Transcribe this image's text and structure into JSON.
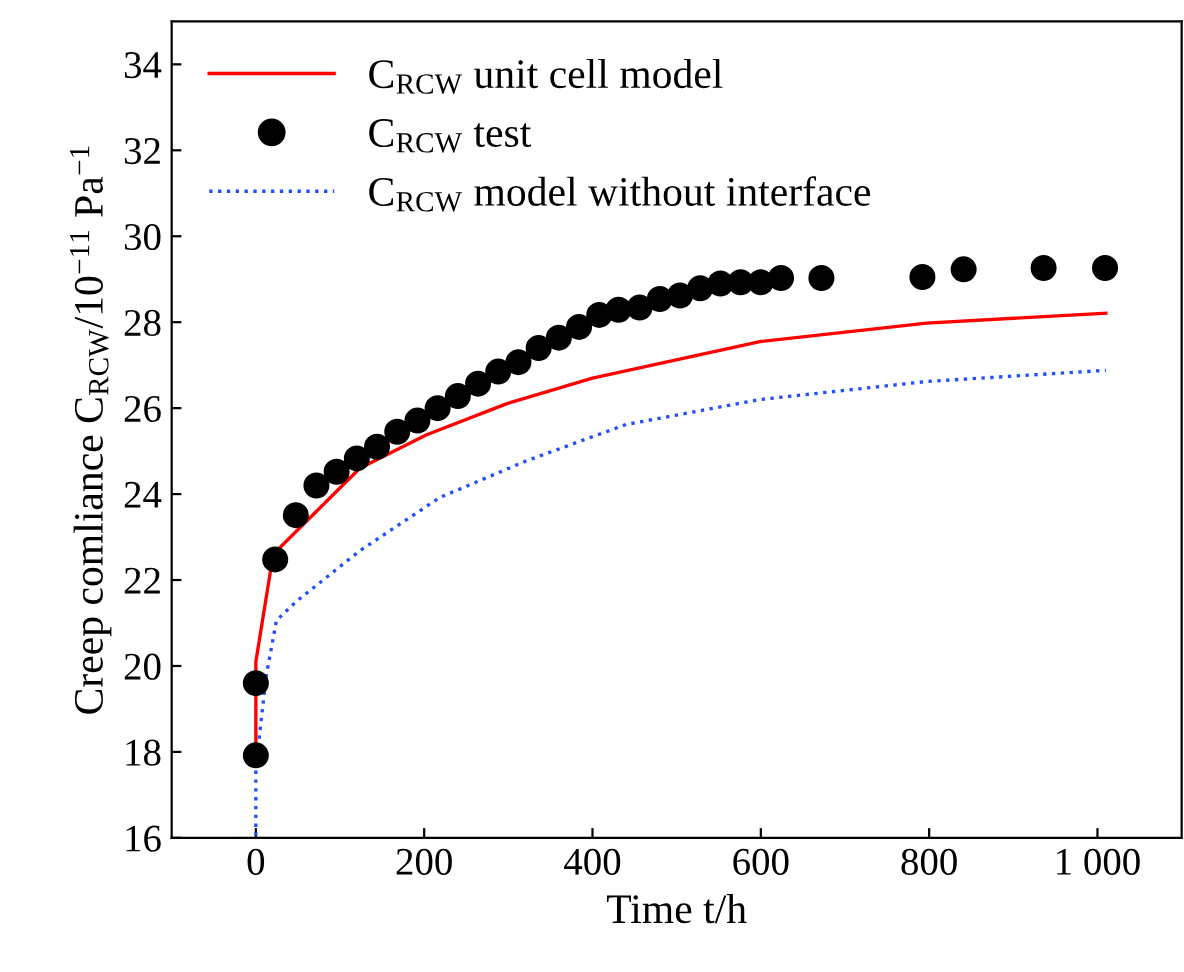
{
  "chart_data": {
    "type": "line",
    "xlabel": "Time t/h",
    "ylabel": "Creep comliance C$_{RCW}$/10$^{−11}$ Pa$^{−1}$",
    "xlim": [
      -100,
      1100
    ],
    "ylim": [
      16,
      35
    ],
    "xticks": [
      0,
      200,
      400,
      600,
      800,
      {
        "value": 1000,
        "label": "1 000"
      }
    ],
    "yticks": [
      16,
      18,
      20,
      22,
      24,
      26,
      28,
      30,
      32,
      34
    ],
    "grid": false,
    "legend": "top left",
    "series": [
      {
        "name": "C$_{RCW}$ unit cell model",
        "color": "#ff0000",
        "line_style": "solid",
        "marker": "none",
        "x": [
          0,
          0,
          20.6,
          123.5,
          203,
          297.6,
          400,
          599,
          797,
          1010
        ],
        "values": [
          17.9,
          20.1,
          22.6,
          24.6,
          25.38,
          26.1,
          26.7,
          27.55,
          27.98,
          28.21
        ]
      },
      {
        "name": "C$_{RCW}$ test",
        "type": "scatter",
        "color": "#000000",
        "marker": "circle",
        "x": [
          0,
          0,
          23,
          47.5,
          72,
          96,
          120,
          144,
          168,
          192,
          216,
          240,
          264,
          288,
          312,
          336,
          360,
          384,
          408,
          431,
          456,
          480,
          504,
          528,
          552,
          576,
          600,
          624,
          672,
          792,
          841,
          936,
          1009
        ],
        "values": [
          17.92,
          19.6,
          22.48,
          23.51,
          24.2,
          24.52,
          24.83,
          25.1,
          25.45,
          25.71,
          26.0,
          26.28,
          26.57,
          26.85,
          27.07,
          27.4,
          27.64,
          27.89,
          28.17,
          28.29,
          28.34,
          28.54,
          28.62,
          28.79,
          28.9,
          28.93,
          28.93,
          29.03,
          29.03,
          29.05,
          29.23,
          29.26,
          29.26
        ]
      },
      {
        "name": "C$_{RCW}$ model without interface",
        "color": "#1f4fff",
        "line_style": "dotted",
        "marker": "none",
        "x": [
          0,
          0,
          12.6,
          24.5,
          48,
          123.5,
          218.5,
          321,
          440,
          599,
          797,
          1010
        ],
        "values": [
          16.05,
          17.66,
          19.8,
          21.06,
          21.5,
          22.68,
          23.92,
          24.77,
          25.62,
          26.2,
          26.62,
          26.88
        ]
      }
    ]
  }
}
